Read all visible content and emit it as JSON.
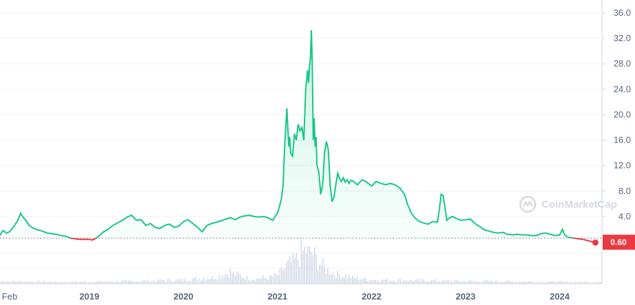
{
  "watermark": {
    "text": "CoinMarketCap",
    "icon": "coinmarketcap-logo-icon"
  },
  "current_price_label": "0.60",
  "colors": {
    "up": "#16c784",
    "down": "#ea3943",
    "grid": "#eff2f5",
    "axis_text": "#58667e",
    "volume": "#cfd6e4"
  },
  "chart_data": {
    "type": "line",
    "title": "",
    "xlabel": "",
    "ylabel": "",
    "y_ticks": [
      "36.0",
      "32.0",
      "28.0",
      "24.0",
      "20.0",
      "16.0",
      "12.0",
      "8.0",
      "4.0"
    ],
    "ylim": [
      0,
      37.5
    ],
    "x_tick_labels": [
      "Feb",
      "2019",
      "2020",
      "2021",
      "2022",
      "2023",
      "2024"
    ],
    "x_tick_positions": [
      2018.08,
      2019.0,
      2020.0,
      2021.0,
      2022.0,
      2023.0,
      2024.0
    ],
    "xlim": [
      2018.05,
      2024.45
    ],
    "reference_price": 0.6,
    "grid": true,
    "legend": "none",
    "series": [
      {
        "values_x": [
          2018.05,
          2018.08,
          2018.12,
          2018.15,
          2018.2,
          2018.24,
          2018.27,
          2018.3,
          2018.33,
          2018.36,
          2018.4,
          2018.45,
          2018.5,
          2018.55,
          2018.6,
          2018.65,
          2018.7,
          2018.75,
          2018.8,
          2018.85,
          2018.9,
          2018.95,
          2019.0,
          2019.03,
          2019.06,
          2019.1,
          2019.15,
          2019.2,
          2019.25,
          2019.3,
          2019.35,
          2019.4,
          2019.45,
          2019.5,
          2019.55,
          2019.6,
          2019.65,
          2019.7,
          2019.75,
          2019.8,
          2019.85,
          2019.9,
          2019.95,
          2020.0,
          2020.05,
          2020.1,
          2020.15,
          2020.2,
          2020.22,
          2020.25,
          2020.3,
          2020.35,
          2020.4,
          2020.45,
          2020.5,
          2020.55,
          2020.6,
          2020.65,
          2020.7,
          2020.75,
          2020.8,
          2020.85,
          2020.9,
          2020.95,
          2021.0,
          2021.02,
          2021.04,
          2021.06,
          2021.07,
          2021.08,
          2021.09,
          2021.1,
          2021.11,
          2021.12,
          2021.13,
          2021.14,
          2021.16,
          2021.18,
          2021.2,
          2021.22,
          2021.24,
          2021.26,
          2021.28,
          2021.3,
          2021.32,
          2021.33,
          2021.34,
          2021.35,
          2021.36,
          2021.37,
          2021.38,
          2021.39,
          2021.4,
          2021.41,
          2021.42,
          2021.44,
          2021.46,
          2021.48,
          2021.5,
          2021.52,
          2021.54,
          2021.56,
          2021.58,
          2021.6,
          2021.62,
          2021.64,
          2021.66,
          2021.68,
          2021.7,
          2021.72,
          2021.74,
          2021.76,
          2021.78,
          2021.8,
          2021.85,
          2021.9,
          2021.95,
          2022.0,
          2022.05,
          2022.1,
          2022.15,
          2022.2,
          2022.25,
          2022.3,
          2022.35,
          2022.38,
          2022.42,
          2022.46,
          2022.5,
          2022.55,
          2022.6,
          2022.65,
          2022.7,
          2022.72,
          2022.74,
          2022.76,
          2022.78,
          2022.8,
          2022.83,
          2022.86,
          2022.9,
          2022.95,
          2023.0,
          2023.05,
          2023.1,
          2023.15,
          2023.2,
          2023.25,
          2023.3,
          2023.35,
          2023.4,
          2023.45,
          2023.5,
          2023.55,
          2023.6,
          2023.65,
          2023.7,
          2023.75,
          2023.8,
          2023.85,
          2023.9,
          2023.95,
          2024.0,
          2024.03,
          2024.05,
          2024.07,
          2024.1,
          2024.15,
          2024.2,
          2024.25,
          2024.3,
          2024.35,
          2024.38
        ],
        "values_y": [
          1.0,
          1.8,
          1.4,
          1.6,
          2.5,
          3.4,
          4.5,
          3.8,
          3.3,
          2.6,
          2.2,
          1.9,
          1.7,
          1.4,
          1.3,
          1.2,
          1.0,
          0.9,
          0.6,
          0.5,
          0.4,
          0.4,
          0.4,
          0.3,
          0.5,
          0.9,
          1.6,
          2.0,
          2.6,
          3.0,
          3.4,
          3.9,
          4.2,
          3.4,
          3.5,
          2.6,
          2.9,
          2.3,
          2.1,
          2.6,
          2.8,
          2.3,
          2.5,
          3.2,
          3.5,
          2.9,
          2.3,
          1.6,
          2.0,
          2.6,
          2.9,
          3.1,
          3.3,
          3.6,
          3.8,
          3.5,
          3.9,
          4.1,
          4.2,
          4.0,
          3.9,
          4.0,
          3.8,
          3.4,
          4.6,
          5.5,
          6.7,
          9.0,
          13.0,
          16.0,
          18.5,
          21.0,
          18.0,
          15.0,
          16.5,
          14.0,
          13.5,
          17.0,
          16.0,
          18.5,
          17.5,
          18.0,
          16.0,
          24.0,
          27.0,
          25.0,
          27.5,
          29.0,
          33.3,
          28.0,
          16.0,
          19.5,
          15.0,
          16.5,
          12.0,
          11.0,
          7.5,
          9.0,
          14.0,
          15.8,
          14.5,
          9.0,
          6.3,
          7.0,
          9.0,
          10.8,
          10.0,
          9.5,
          10.1,
          9.4,
          9.8,
          9.2,
          9.7,
          9.6,
          9.0,
          9.8,
          9.4,
          8.8,
          9.5,
          9.2,
          9.0,
          9.2,
          9.0,
          8.5,
          7.5,
          6.0,
          4.6,
          3.8,
          3.3,
          3.0,
          2.8,
          3.2,
          3.1,
          5.0,
          7.5,
          7.3,
          5.5,
          3.4,
          3.8,
          4.0,
          3.7,
          3.4,
          3.5,
          3.6,
          2.9,
          2.4,
          1.9,
          1.7,
          1.5,
          1.4,
          1.5,
          1.2,
          1.1,
          1.2,
          1.1,
          1.1,
          1.0,
          1.0,
          1.3,
          1.4,
          1.2,
          1.0,
          1.1,
          2.0,
          1.2,
          0.9,
          0.7,
          0.6,
          0.5,
          0.4,
          0.2,
          0.0,
          -0.1
        ],
        "color_rule": "green above reference_price, red below"
      }
    ],
    "volume": {
      "ylim": [
        0,
        1
      ],
      "values_x": [
        2018.05,
        2018.5,
        2019.0,
        2019.5,
        2020.0,
        2020.3,
        2020.45,
        2020.5,
        2020.55,
        2020.7,
        2020.9,
        2021.0,
        2021.1,
        2021.2,
        2021.25,
        2021.3,
        2021.33,
        2021.36,
        2021.4,
        2021.45,
        2021.5,
        2021.6,
        2021.7,
        2021.8,
        2022.0,
        2022.5,
        2023.0,
        2023.5,
        2024.0,
        2024.4
      ],
      "values_y": [
        0.08,
        0.06,
        0.06,
        0.08,
        0.12,
        0.18,
        0.3,
        0.35,
        0.28,
        0.15,
        0.18,
        0.25,
        0.55,
        0.7,
        0.9,
        1.0,
        0.85,
        0.95,
        0.75,
        0.6,
        0.45,
        0.3,
        0.25,
        0.18,
        0.12,
        0.1,
        0.08,
        0.07,
        0.06,
        0.05
      ]
    }
  }
}
